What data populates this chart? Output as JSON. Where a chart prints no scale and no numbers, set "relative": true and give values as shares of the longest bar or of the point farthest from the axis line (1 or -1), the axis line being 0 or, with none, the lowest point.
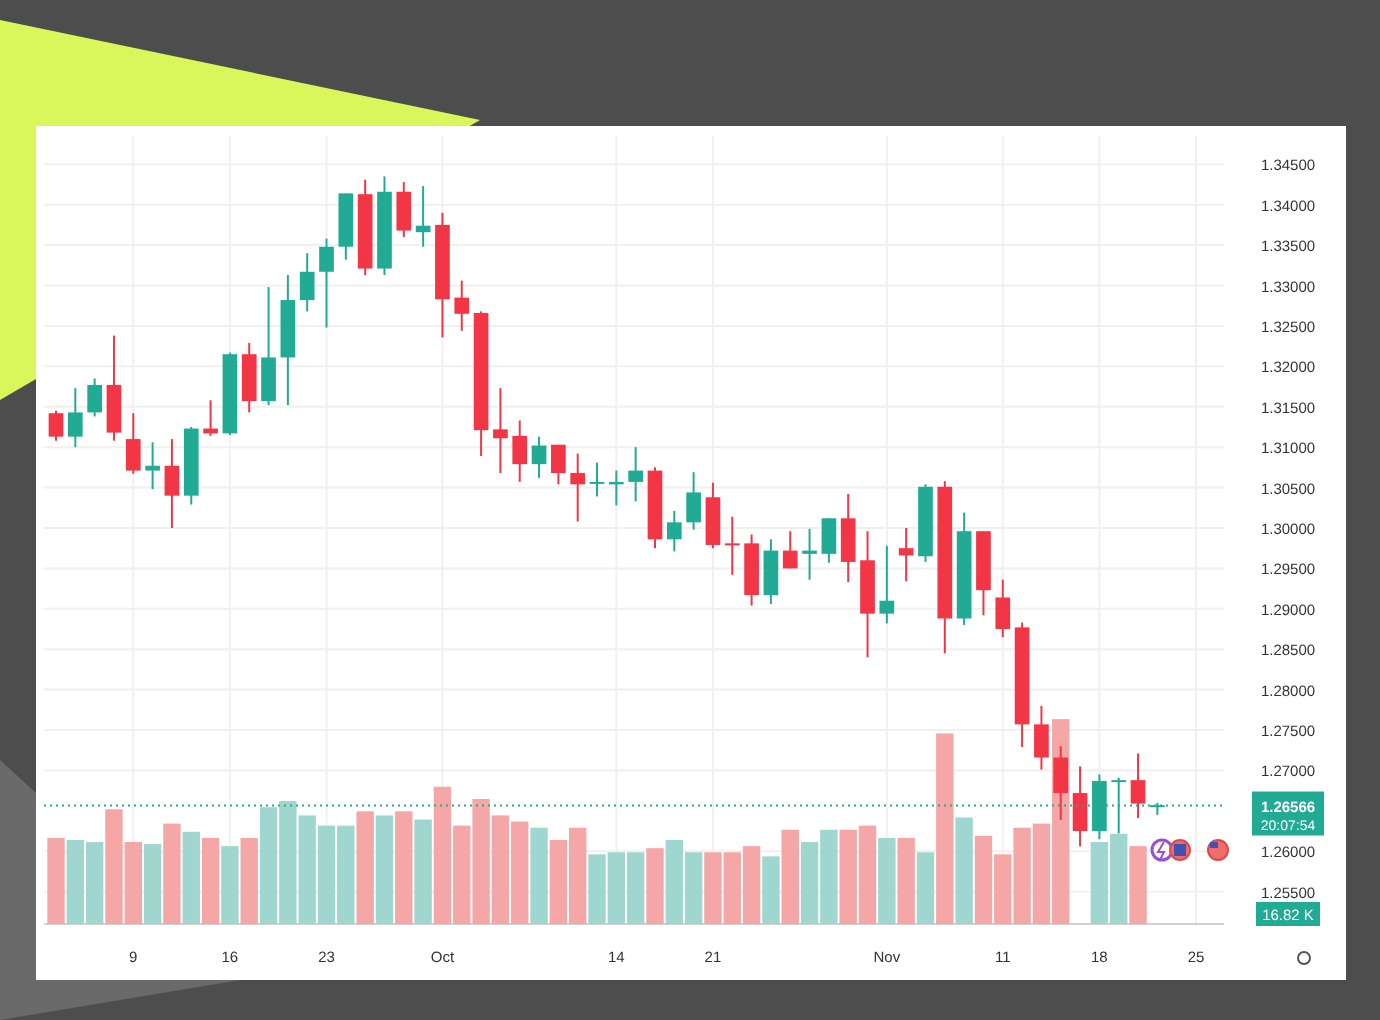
{
  "chart_data": [
    {
      "type": "candlestick",
      "categories": [
        null,
        null,
        null,
        null,
        "9",
        null,
        null,
        null,
        null,
        "16",
        null,
        null,
        null,
        null,
        "23",
        null,
        null,
        null,
        null,
        null,
        "Oct",
        null,
        null,
        null,
        null,
        null,
        null,
        null,
        null,
        "14",
        null,
        null,
        null,
        null,
        "21",
        null,
        null,
        null,
        null,
        null,
        null,
        null,
        null,
        "Nov",
        null,
        null,
        null,
        null,
        null,
        "11",
        null,
        null,
        null,
        null,
        "18",
        null,
        null,
        null,
        null,
        "25"
      ],
      "series": [
        {
          "ohlc": [
            [
              1.3142,
              1.3145,
              1.3108,
              1.3113
            ],
            [
              1.3113,
              1.3173,
              1.31,
              1.3143
            ],
            [
              1.3143,
              1.3185,
              1.3138,
              1.3177
            ],
            [
              1.3177,
              1.3238,
              1.3108,
              1.3118
            ],
            [
              1.311,
              1.3142,
              1.3067,
              1.3071
            ],
            [
              1.3071,
              1.3106,
              1.3048,
              1.3077
            ],
            [
              1.3077,
              1.311,
              1.3,
              1.304
            ],
            [
              1.304,
              1.3125,
              1.3029,
              1.3123
            ],
            [
              1.3123,
              1.3158,
              1.3114,
              1.3117
            ],
            [
              1.3117,
              1.3217,
              1.3115,
              1.3215
            ],
            [
              1.3215,
              1.3229,
              1.3143,
              1.3157
            ],
            [
              1.3157,
              1.3298,
              1.3152,
              1.3211
            ],
            [
              1.3211,
              1.3313,
              1.3152,
              1.3282
            ],
            [
              1.3282,
              1.334,
              1.3268,
              1.3317
            ],
            [
              1.3317,
              1.3358,
              1.3248,
              1.3348
            ],
            [
              1.3348,
              1.3414,
              1.3332,
              1.3414
            ],
            [
              1.3413,
              1.3431,
              1.3313,
              1.3321
            ],
            [
              1.3321,
              1.3435,
              1.3313,
              1.3416
            ],
            [
              1.3416,
              1.3428,
              1.336,
              1.3368
            ],
            [
              1.3366,
              1.3423,
              1.3348,
              1.3374
            ],
            [
              1.3375,
              1.339,
              1.3236,
              1.3283
            ],
            [
              1.3285,
              1.3306,
              1.3244,
              1.3265
            ],
            [
              1.3266,
              1.3268,
              1.3089,
              1.3121
            ],
            [
              1.3122,
              1.3173,
              1.3068,
              1.3111
            ],
            [
              1.3114,
              1.3133,
              1.3057,
              1.3079
            ],
            [
              1.3079,
              1.3113,
              1.3062,
              1.3102
            ],
            [
              1.3103,
              1.3103,
              1.3054,
              1.3068
            ],
            [
              1.3068,
              1.3092,
              1.3008,
              1.3054
            ],
            [
              1.3056,
              1.3081,
              1.3039,
              1.3057
            ],
            [
              1.3054,
              1.3071,
              1.3028,
              1.3057
            ],
            [
              1.3057,
              1.31,
              1.3033,
              1.3071
            ],
            [
              1.3071,
              1.3075,
              1.2975,
              1.2986
            ],
            [
              1.2986,
              1.3021,
              1.2971,
              1.3007
            ],
            [
              1.3007,
              1.3069,
              1.2998,
              1.3044
            ],
            [
              1.3038,
              1.3056,
              1.2975,
              1.2979
            ],
            [
              1.2981,
              1.3014,
              1.2942,
              1.2979
            ],
            [
              1.2981,
              1.2992,
              1.2904,
              1.2917
            ],
            [
              1.2917,
              1.2986,
              1.2906,
              1.2972
            ],
            [
              1.2972,
              1.2996,
              1.295,
              1.295
            ],
            [
              1.2968,
              1.2999,
              1.2936,
              1.2972
            ],
            [
              1.2968,
              1.3012,
              1.2957,
              1.3012
            ],
            [
              1.3012,
              1.3042,
              1.2933,
              1.2958
            ],
            [
              1.296,
              1.2996,
              1.284,
              1.2894
            ],
            [
              1.2894,
              1.2978,
              1.2882,
              1.291
            ],
            [
              1.2975,
              1.3,
              1.2934,
              1.2966
            ],
            [
              1.2965,
              1.3054,
              1.2958,
              1.3051
            ],
            [
              1.3051,
              1.3058,
              1.2845,
              1.2888
            ],
            [
              1.2888,
              1.3019,
              1.288,
              1.2996
            ],
            [
              1.2996,
              1.2996,
              1.2892,
              1.2923
            ],
            [
              1.2914,
              1.2936,
              1.2865,
              1.2875
            ],
            [
              1.2877,
              1.2883,
              1.2729,
              1.2757
            ],
            [
              1.2757,
              1.278,
              1.2701,
              1.2716
            ],
            [
              1.2716,
              1.273,
              1.2639,
              1.2672
            ],
            [
              1.2672,
              1.2705,
              1.2606,
              1.2625
            ],
            [
              1.2625,
              1.2695,
              1.2615,
              1.2687
            ],
            [
              1.2686,
              1.2691,
              1.2622,
              1.2688
            ],
            [
              1.2688,
              1.2721,
              1.2641,
              1.2659
            ],
            [
              1.2655,
              1.266,
              1.2645,
              1.2657
            ],
            null,
            null
          ],
          "colors": [
            "#f23645",
            "#22ab94",
            "#22ab94",
            "#f23645",
            "#f23645",
            "#22ab94",
            "#f23645",
            "#22ab94",
            "#f23645",
            "#22ab94",
            "#f23645",
            "#22ab94",
            "#22ab94",
            "#22ab94",
            "#22ab94",
            "#22ab94",
            "#f23645",
            "#22ab94",
            "#f23645",
            "#22ab94",
            "#f23645",
            "#f23645",
            "#f23645",
            "#f23645",
            "#f23645",
            "#22ab94",
            "#f23645",
            "#f23645",
            "#22ab94",
            "#22ab94",
            "#22ab94",
            "#f23645",
            "#22ab94",
            "#22ab94",
            "#f23645",
            "#f23645",
            "#f23645",
            "#22ab94",
            "#f23645",
            "#22ab94",
            "#22ab94",
            "#f23645",
            "#f23645",
            "#22ab94",
            "#f23645",
            "#22ab94",
            "#f23645",
            "#22ab94",
            "#f23645",
            "#f23645",
            "#f23645",
            "#f23645",
            "#f23645",
            "#f23645",
            "#22ab94",
            "#22ab94",
            "#f23645",
            "#22ab94",
            null,
            null
          ]
        }
      ],
      "ylim": [
        1.251,
        1.3485
      ],
      "yticks": [
        {
          "value": 1.255,
          "label": "1.25500"
        },
        {
          "value": 1.26,
          "label": "1.26000"
        },
        {
          "value": 1.27,
          "label": "1.27000"
        },
        {
          "value": 1.275,
          "label": "1.27500"
        },
        {
          "value": 1.28,
          "label": "1.28000"
        },
        {
          "value": 1.285,
          "label": "1.28500"
        },
        {
          "value": 1.29,
          "label": "1.29000"
        },
        {
          "value": 1.295,
          "label": "1.29500"
        },
        {
          "value": 1.3,
          "label": "1.30000"
        },
        {
          "value": 1.305,
          "label": "1.30500"
        },
        {
          "value": 1.31,
          "label": "1.31000"
        },
        {
          "value": 1.315,
          "label": "1.31500"
        },
        {
          "value": 1.32,
          "label": "1.32000"
        },
        {
          "value": 1.325,
          "label": "1.32500"
        },
        {
          "value": 1.33,
          "label": "1.33000"
        },
        {
          "value": 1.335,
          "label": "1.33500"
        },
        {
          "value": 1.34,
          "label": "1.34000"
        },
        {
          "value": 1.345,
          "label": "1.34500"
        }
      ],
      "grid": true,
      "ref_lines": [
        {
          "axis": "y",
          "value": 1.26566,
          "label": "1.26566",
          "color": "#22ab94",
          "line_style": "dotted"
        }
      ],
      "annotations": [
        "20:07:54",
        "16.82 K"
      ]
    },
    {
      "type": "bar",
      "relative": true,
      "categories": [
        null,
        null,
        null,
        null,
        null,
        null,
        null,
        null,
        null,
        null,
        null,
        null,
        null,
        null,
        null,
        null,
        null,
        null,
        null,
        null,
        null,
        null,
        null,
        null,
        null,
        null,
        null,
        null,
        null,
        null,
        null,
        null,
        null,
        null,
        null,
        null,
        null,
        null,
        null,
        null,
        null,
        null,
        null,
        null,
        null,
        null,
        null,
        null,
        null,
        null,
        null,
        null,
        null,
        null,
        null,
        null,
        null,
        null,
        null,
        null
      ],
      "values": [
        0.42,
        0.41,
        0.4,
        0.56,
        0.4,
        0.39,
        0.49,
        0.45,
        0.42,
        0.38,
        0.42,
        0.57,
        0.6,
        0.53,
        0.48,
        0.48,
        0.55,
        0.53,
        0.55,
        0.51,
        0.67,
        0.48,
        0.61,
        0.53,
        0.5,
        0.47,
        0.41,
        0.47,
        0.34,
        0.35,
        0.35,
        0.37,
        0.41,
        0.35,
        0.35,
        0.35,
        0.38,
        0.33,
        0.46,
        0.4,
        0.46,
        0.46,
        0.48,
        0.42,
        0.42,
        0.35,
        0.93,
        0.52,
        0.43,
        0.34,
        0.47,
        0.49,
        1,
        null,
        0.4,
        0.44,
        0.38,
        null,
        null,
        null
      ],
      "colors": [
        "#f5a6a6",
        "#9fd6cf",
        "#9fd6cf",
        "#f5a6a6",
        "#f5a6a6",
        "#9fd6cf",
        "#f5a6a6",
        "#9fd6cf",
        "#f5a6a6",
        "#9fd6cf",
        "#f5a6a6",
        "#9fd6cf",
        "#9fd6cf",
        "#9fd6cf",
        "#9fd6cf",
        "#9fd6cf",
        "#f5a6a6",
        "#9fd6cf",
        "#f5a6a6",
        "#9fd6cf",
        "#f5a6a6",
        "#f5a6a6",
        "#f5a6a6",
        "#f5a6a6",
        "#f5a6a6",
        "#9fd6cf",
        "#f5a6a6",
        "#f5a6a6",
        "#9fd6cf",
        "#9fd6cf",
        "#9fd6cf",
        "#f5a6a6",
        "#9fd6cf",
        "#9fd6cf",
        "#f5a6a6",
        "#f5a6a6",
        "#f5a6a6",
        "#9fd6cf",
        "#f5a6a6",
        "#9fd6cf",
        "#9fd6cf",
        "#f5a6a6",
        "#f5a6a6",
        "#9fd6cf",
        "#f5a6a6",
        "#9fd6cf",
        "#f5a6a6",
        "#9fd6cf",
        "#f5a6a6",
        "#f5a6a6",
        "#f5a6a6",
        "#f5a6a6",
        "#f5a6a6",
        null,
        "#9fd6cf",
        "#9fd6cf",
        "#f5a6a6",
        null,
        null,
        null
      ]
    }
  ]
}
